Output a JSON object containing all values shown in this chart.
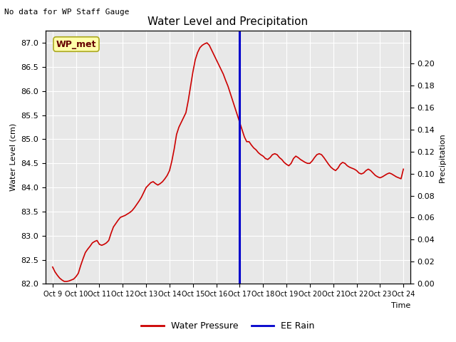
{
  "title": "Water Level and Precipitation",
  "top_left_text": "No data for WP Staff Gauge",
  "xlabel": "Time",
  "ylabel_left": "Water Level (cm)",
  "ylabel_right": "Precipitation",
  "legend_label_red": "Water Pressure",
  "legend_label_blue": "EE Rain",
  "annotation_box": "WP_met",
  "ylim_left": [
    82.0,
    87.25
  ],
  "ylim_right": [
    0.0,
    0.2294
  ],
  "yticks_left": [
    82.0,
    82.5,
    83.0,
    83.5,
    84.0,
    84.5,
    85.0,
    85.5,
    86.0,
    86.5,
    87.0
  ],
  "yticks_right": [
    0.0,
    0.02,
    0.04,
    0.06,
    0.08,
    0.1,
    0.12,
    0.14,
    0.16,
    0.18,
    0.2
  ],
  "vline_x": 17.0,
  "background_color": "#e8e8e8",
  "red_line_color": "#cc0000",
  "blue_line_color": "#0000cc",
  "annotation_box_color": "#ffffaa",
  "annotation_text_color": "#660000",
  "x_tick_labels": [
    "Oct 9",
    "Oct 10",
    "Oct 11",
    "Oct 12",
    "Oct 13",
    "Oct 14",
    "Oct 15",
    "Oct 16",
    "Oct 17",
    "Oct 18",
    "Oct 19",
    "Oct 20",
    "Oct 21",
    "Oct 22",
    "Oct 23",
    "Oct 24"
  ],
  "x_tick_positions": [
    9,
    10,
    11,
    12,
    13,
    14,
    15,
    16,
    17,
    18,
    19,
    20,
    21,
    22,
    23,
    24
  ],
  "xlim": [
    8.7,
    24.3
  ],
  "water_level_x": [
    9.0,
    9.1,
    9.2,
    9.3,
    9.4,
    9.5,
    9.6,
    9.7,
    9.8,
    9.9,
    10.0,
    10.1,
    10.2,
    10.3,
    10.4,
    10.5,
    10.6,
    10.7,
    10.8,
    10.9,
    11.0,
    11.1,
    11.2,
    11.3,
    11.4,
    11.5,
    11.6,
    11.7,
    11.8,
    11.9,
    12.0,
    12.1,
    12.2,
    12.3,
    12.4,
    12.5,
    12.6,
    12.7,
    12.8,
    12.9,
    13.0,
    13.1,
    13.2,
    13.3,
    13.4,
    13.5,
    13.6,
    13.7,
    13.8,
    13.9,
    14.0,
    14.1,
    14.2,
    14.3,
    14.4,
    14.5,
    14.6,
    14.7,
    14.8,
    14.9,
    15.0,
    15.1,
    15.2,
    15.3,
    15.4,
    15.5,
    15.6,
    15.7,
    15.8,
    15.9,
    16.0,
    16.1,
    16.2,
    16.3,
    16.4,
    16.5,
    16.6,
    16.7,
    16.8,
    16.9,
    17.0,
    17.1,
    17.2,
    17.3,
    17.4,
    17.5,
    17.6,
    17.7,
    17.8,
    17.9,
    18.0,
    18.1,
    18.2,
    18.3,
    18.4,
    18.5,
    18.6,
    18.7,
    18.8,
    18.9,
    19.0,
    19.1,
    19.2,
    19.3,
    19.4,
    19.5,
    19.6,
    19.7,
    19.8,
    19.9,
    20.0,
    20.1,
    20.2,
    20.3,
    20.4,
    20.5,
    20.6,
    20.7,
    20.8,
    20.9,
    21.0,
    21.1,
    21.2,
    21.3,
    21.4,
    21.5,
    21.6,
    21.7,
    21.8,
    21.9,
    22.0,
    22.1,
    22.2,
    22.3,
    22.4,
    22.5,
    22.6,
    22.7,
    22.8,
    22.9,
    23.0,
    23.1,
    23.2,
    23.3,
    23.4,
    23.5,
    23.6,
    23.7,
    23.8,
    23.9,
    24.0
  ],
  "water_level_y": [
    82.35,
    82.25,
    82.18,
    82.12,
    82.08,
    82.05,
    82.05,
    82.06,
    82.08,
    82.1,
    82.15,
    82.22,
    82.38,
    82.52,
    82.65,
    82.72,
    82.78,
    82.85,
    82.88,
    82.9,
    82.82,
    82.8,
    82.82,
    82.85,
    82.9,
    83.05,
    83.18,
    83.25,
    83.32,
    83.38,
    83.4,
    83.42,
    83.45,
    83.48,
    83.52,
    83.58,
    83.65,
    83.72,
    83.8,
    83.9,
    84.0,
    84.05,
    84.1,
    84.12,
    84.08,
    84.05,
    84.08,
    84.12,
    84.18,
    84.25,
    84.35,
    84.55,
    84.8,
    85.1,
    85.25,
    85.35,
    85.45,
    85.55,
    85.8,
    86.1,
    86.4,
    86.65,
    86.8,
    86.9,
    86.95,
    86.98,
    87.0,
    86.95,
    86.85,
    86.75,
    86.65,
    86.55,
    86.45,
    86.35,
    86.22,
    86.1,
    85.95,
    85.8,
    85.65,
    85.5,
    85.35,
    85.2,
    85.05,
    84.95,
    84.95,
    84.88,
    84.82,
    84.78,
    84.72,
    84.68,
    84.65,
    84.6,
    84.58,
    84.62,
    84.68,
    84.7,
    84.68,
    84.62,
    84.58,
    84.52,
    84.48,
    84.45,
    84.5,
    84.6,
    84.65,
    84.62,
    84.58,
    84.55,
    84.52,
    84.5,
    84.5,
    84.55,
    84.62,
    84.68,
    84.7,
    84.68,
    84.62,
    84.55,
    84.48,
    84.42,
    84.38,
    84.35,
    84.4,
    84.48,
    84.52,
    84.5,
    84.45,
    84.42,
    84.4,
    84.38,
    84.35,
    84.3,
    84.28,
    84.3,
    84.35,
    84.38,
    84.35,
    84.3,
    84.25,
    84.22,
    84.2,
    84.22,
    84.25,
    84.28,
    84.3,
    84.28,
    84.25,
    84.22,
    84.2,
    84.18,
    84.38
  ]
}
